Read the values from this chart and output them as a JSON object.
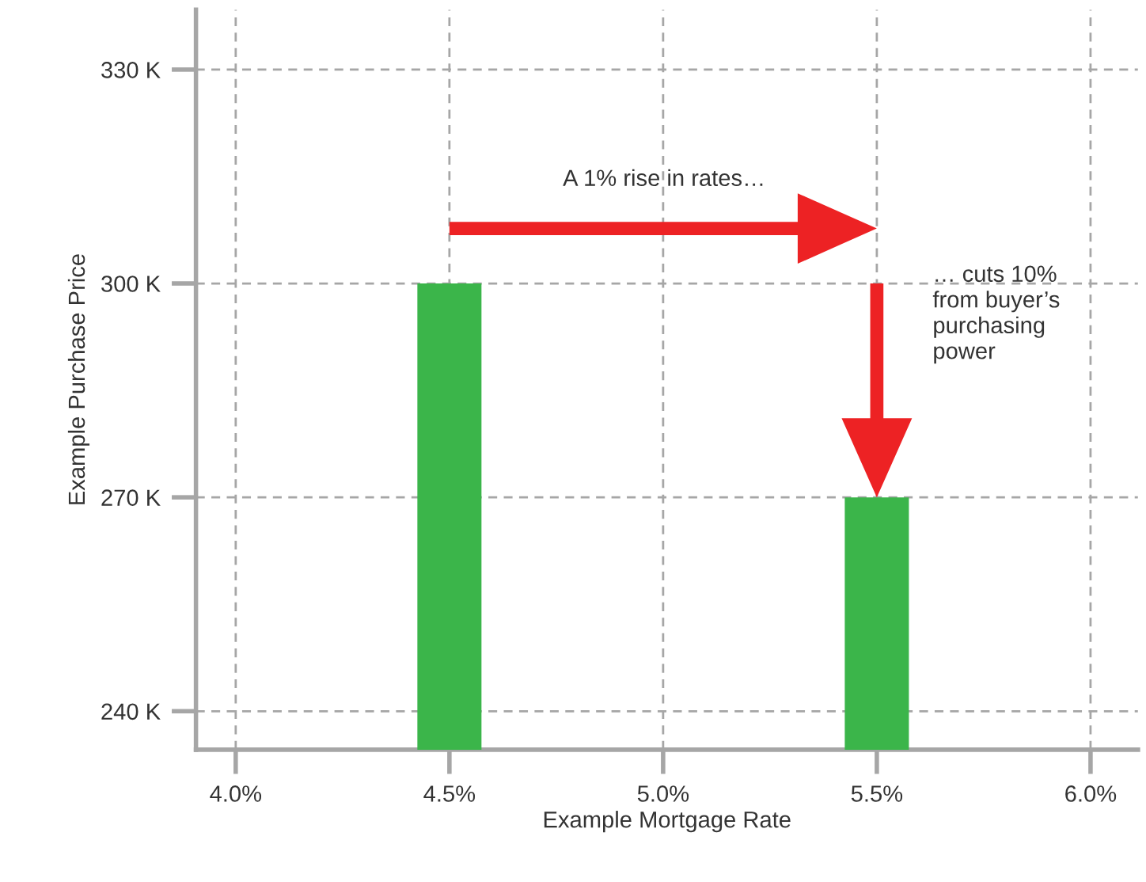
{
  "chart_data": {
    "type": "bar",
    "xlabel": "Example Mortgage Rate",
    "ylabel": "Example Purchase Price",
    "x": [
      4.5,
      5.5
    ],
    "values": [
      300,
      270
    ],
    "color": "#3bb54a",
    "xlim": [
      3.907,
      6.111
    ],
    "xticks": [
      {
        "value": 4.0,
        "label": "4.0%"
      },
      {
        "value": 4.5,
        "label": "4.5%"
      },
      {
        "value": 5.0,
        "label": "5.0%"
      },
      {
        "value": 5.5,
        "label": "5.5%"
      },
      {
        "value": 6.0,
        "label": "6.0%"
      }
    ],
    "ylim": [
      234.6,
      338.4
    ],
    "yticks": [
      {
        "value": 240,
        "label": "240 K"
      },
      {
        "value": 270,
        "label": "270 K"
      },
      {
        "value": 300,
        "label": "300 K"
      },
      {
        "value": 330,
        "label": "330 K"
      }
    ],
    "grid": true,
    "annotations": [
      "A 1% rise in rates…",
      "… cuts 10%\nfrom buyer’s\npurchasing\npower"
    ]
  }
}
